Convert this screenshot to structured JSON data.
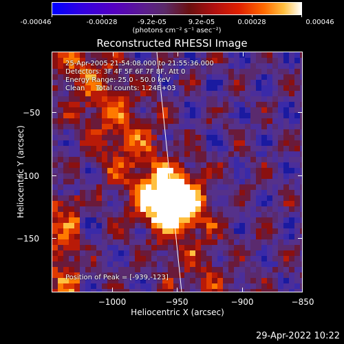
{
  "colorbar": {
    "labels": [
      "-0.00046",
      "-0.00028",
      "-9.2e-05",
      "9.2e-05",
      "0.00028",
      "0.00046"
    ],
    "units": "(photons cm⁻² s⁻¹ asec⁻²)"
  },
  "title": "Reconstructed RHESSI Image",
  "info": {
    "time": "25-Apr-2005 21:54:08.000 to 21:55:36.000",
    "detectors": "Detectors: 3F 4F 5F 6F 7F 8F, Att 0",
    "energy": "Energy Range: 25.0 - 50.0 keV",
    "clean": "Clean     Total counts: 1.24E+03",
    "peak": "Position of Peak = [-939,-123]"
  },
  "axes": {
    "xlabel": "Heliocentric X (arcsec)",
    "ylabel": "Heliocentric Y (arcsec)",
    "xticks": [
      "−1000",
      "−950",
      "−900",
      "−850"
    ],
    "yticks": [
      "−50",
      "−100",
      "−150"
    ],
    "xrange": [
      -1035,
      -842
    ],
    "yrange": [
      -192,
      -12
    ]
  },
  "peak": {
    "x": -939,
    "y": -123
  },
  "timestamp": "29-Apr-2022 10:22",
  "colors": {
    "background": "#000000",
    "foreground": "#ffffff",
    "limb": "#ffffff"
  }
}
